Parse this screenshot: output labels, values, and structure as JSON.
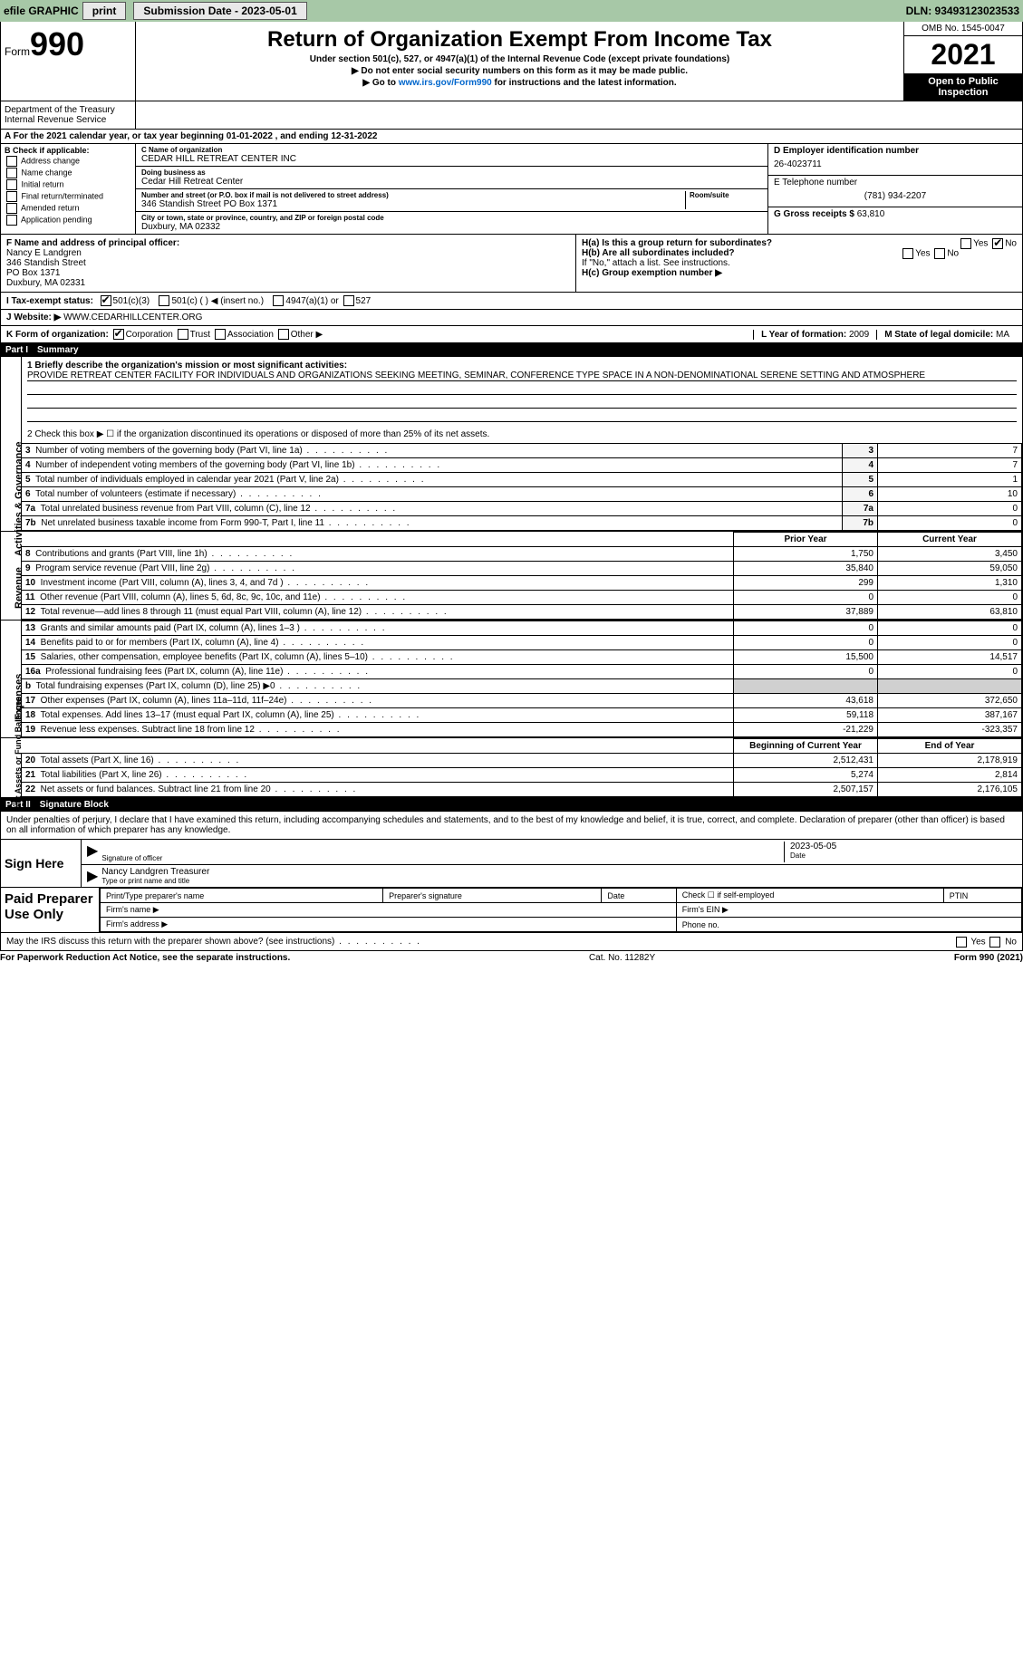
{
  "topbar": {
    "efile": "efile GRAPHIC",
    "print": "print",
    "submission_label": "Submission Date - 2023-05-01",
    "dln": "DLN: 93493123023533"
  },
  "header": {
    "form_word": "Form",
    "form_num": "990",
    "title": "Return of Organization Exempt From Income Tax",
    "sub1": "Under section 501(c), 527, or 4947(a)(1) of the Internal Revenue Code (except private foundations)",
    "sub2": "▶ Do not enter social security numbers on this form as it may be made public.",
    "sub3_pre": "▶ Go to ",
    "sub3_link": "www.irs.gov/Form990",
    "sub3_post": " for instructions and the latest information.",
    "omb": "OMB No. 1545-0047",
    "year": "2021",
    "open": "Open to Public Inspection",
    "dept": "Department of the Treasury\nInternal Revenue Service"
  },
  "row_a": "A For the 2021 calendar year, or tax year beginning 01-01-2022    , and ending 12-31-2022",
  "col_b": {
    "title": "B Check if applicable:",
    "opts": [
      "Address change",
      "Name change",
      "Initial return",
      "Final return/terminated",
      "Amended return",
      "Application pending"
    ]
  },
  "col_c": {
    "name_lbl": "C Name of organization",
    "name": "CEDAR HILL RETREAT CENTER INC",
    "dba_lbl": "Doing business as",
    "dba": "Cedar Hill Retreat Center",
    "addr_lbl": "Number and street (or P.O. box if mail is not delivered to street address)",
    "room_lbl": "Room/suite",
    "addr": "346 Standish Street PO Box 1371",
    "city_lbl": "City or town, state or province, country, and ZIP or foreign postal code",
    "city": "Duxbury, MA  02332"
  },
  "col_d": {
    "ein_lbl": "D Employer identification number",
    "ein": "26-4023711",
    "phone_lbl": "E Telephone number",
    "phone": "(781) 934-2207",
    "gross_lbl": "G Gross receipts $",
    "gross": "63,810"
  },
  "row_f": {
    "f_lbl": "F  Name and address of principal officer:",
    "officer": "Nancy E Landgren\n346 Standish Street\nPO Box 1371\nDuxbury, MA  02331",
    "h_a": "H(a)  Is this a group return for subordinates?",
    "h_a_ans": "No",
    "h_b": "H(b)  Are all subordinates included?",
    "h_b_note": "If \"No,\" attach a list. See instructions.",
    "h_c": "H(c)  Group exemption number ▶"
  },
  "row_i": {
    "lbl": "I  Tax-exempt status:",
    "opt1": "501(c)(3)",
    "opt2": "501(c) (  ) ◀ (insert no.)",
    "opt3": "4947(a)(1) or",
    "opt4": "527"
  },
  "row_j": {
    "lbl": "J  Website: ▶",
    "val": "WWW.CEDARHILLCENTER.ORG"
  },
  "row_k": {
    "lbl": "K Form of organization:",
    "opts": [
      "Corporation",
      "Trust",
      "Association",
      "Other ▶"
    ],
    "l_lbl": "L Year of formation:",
    "l_val": "2009",
    "m_lbl": "M State of legal domicile:",
    "m_val": "MA"
  },
  "part1": {
    "header_num": "Part I",
    "header_txt": "Summary",
    "side_gov": "Activities & Governance",
    "side_rev": "Revenue",
    "side_exp": "Expenses",
    "side_net": "Net Assets or Fund Balances",
    "line1_lbl": "1  Briefly describe the organization's mission or most significant activities:",
    "line1_txt": "PROVIDE RETREAT CENTER FACILITY FOR INDIVIDUALS AND ORGANIZATIONS SEEKING MEETING, SEMINAR, CONFERENCE TYPE SPACE IN A NON-DENOMINATIONAL SERENE SETTING AND ATMOSPHERE",
    "line2": "2  Check this box ▶ ☐  if the organization discontinued its operations or disposed of more than 25% of its net assets.",
    "gov_rows": [
      {
        "n": "3",
        "label": "Number of voting members of the governing body (Part VI, line 1a)",
        "val": "7"
      },
      {
        "n": "4",
        "label": "Number of independent voting members of the governing body (Part VI, line 1b)",
        "val": "7"
      },
      {
        "n": "5",
        "label": "Total number of individuals employed in calendar year 2021 (Part V, line 2a)",
        "val": "1"
      },
      {
        "n": "6",
        "label": "Total number of volunteers (estimate if necessary)",
        "val": "10"
      },
      {
        "n": "7a",
        "label": "Total unrelated business revenue from Part VIII, column (C), line 12",
        "val": "0"
      },
      {
        "n": "7b",
        "label": "Net unrelated business taxable income from Form 990-T, Part I, line 11",
        "val": "0"
      }
    ],
    "col_prior": "Prior Year",
    "col_current": "Current Year",
    "rev_rows": [
      {
        "n": "8",
        "label": "Contributions and grants (Part VIII, line 1h)",
        "p": "1,750",
        "c": "3,450"
      },
      {
        "n": "9",
        "label": "Program service revenue (Part VIII, line 2g)",
        "p": "35,840",
        "c": "59,050"
      },
      {
        "n": "10",
        "label": "Investment income (Part VIII, column (A), lines 3, 4, and 7d )",
        "p": "299",
        "c": "1,310"
      },
      {
        "n": "11",
        "label": "Other revenue (Part VIII, column (A), lines 5, 6d, 8c, 9c, 10c, and 11e)",
        "p": "0",
        "c": "0"
      },
      {
        "n": "12",
        "label": "Total revenue—add lines 8 through 11 (must equal Part VIII, column (A), line 12)",
        "p": "37,889",
        "c": "63,810"
      }
    ],
    "exp_rows": [
      {
        "n": "13",
        "label": "Grants and similar amounts paid (Part IX, column (A), lines 1–3 )",
        "p": "0",
        "c": "0"
      },
      {
        "n": "14",
        "label": "Benefits paid to or for members (Part IX, column (A), line 4)",
        "p": "0",
        "c": "0"
      },
      {
        "n": "15",
        "label": "Salaries, other compensation, employee benefits (Part IX, column (A), lines 5–10)",
        "p": "15,500",
        "c": "14,517"
      },
      {
        "n": "16a",
        "label": "Professional fundraising fees (Part IX, column (A), line 11e)",
        "p": "0",
        "c": "0"
      },
      {
        "n": "b",
        "label": "Total fundraising expenses (Part IX, column (D), line 25) ▶0",
        "p": "",
        "c": "",
        "shaded": true
      },
      {
        "n": "17",
        "label": "Other expenses (Part IX, column (A), lines 11a–11d, 11f–24e)",
        "p": "43,618",
        "c": "372,650"
      },
      {
        "n": "18",
        "label": "Total expenses. Add lines 13–17 (must equal Part IX, column (A), line 25)",
        "p": "59,118",
        "c": "387,167"
      },
      {
        "n": "19",
        "label": "Revenue less expenses. Subtract line 18 from line 12",
        "p": "-21,229",
        "c": "-323,357"
      }
    ],
    "col_begin": "Beginning of Current Year",
    "col_end": "End of Year",
    "net_rows": [
      {
        "n": "20",
        "label": "Total assets (Part X, line 16)",
        "p": "2,512,431",
        "c": "2,178,919"
      },
      {
        "n": "21",
        "label": "Total liabilities (Part X, line 26)",
        "p": "5,274",
        "c": "2,814"
      },
      {
        "n": "22",
        "label": "Net assets or fund balances. Subtract line 21 from line 20",
        "p": "2,507,157",
        "c": "2,176,105"
      }
    ]
  },
  "part2": {
    "header_num": "Part II",
    "header_txt": "Signature Block",
    "penalties": "Under penalties of perjury, I declare that I have examined this return, including accompanying schedules and statements, and to the best of my knowledge and belief, it is true, correct, and complete. Declaration of preparer (other than officer) is based on all information of which preparer has any knowledge.",
    "sign_here": "Sign Here",
    "sig_officer": "Signature of officer",
    "sig_date": "2023-05-05",
    "date_lbl": "Date",
    "printed": "Nancy Landgren  Treasurer",
    "printed_lbl": "Type or print name and title",
    "paid": "Paid Preparer Use Only",
    "prep_name_lbl": "Print/Type preparer's name",
    "prep_sig_lbl": "Preparer's signature",
    "prep_date_lbl": "Date",
    "prep_check_lbl": "Check ☐ if self-employed",
    "ptin_lbl": "PTIN",
    "firm_name": "Firm's name   ▶",
    "firm_ein": "Firm's EIN ▶",
    "firm_addr": "Firm's address ▶",
    "phone_lbl": "Phone no.",
    "may_irs": "May the IRS discuss this return with the preparer shown above? (see instructions)",
    "yes": "Yes",
    "no": "No"
  },
  "footer": {
    "left": "For Paperwork Reduction Act Notice, see the separate instructions.",
    "mid": "Cat. No. 11282Y",
    "right": "Form 990 (2021)"
  }
}
